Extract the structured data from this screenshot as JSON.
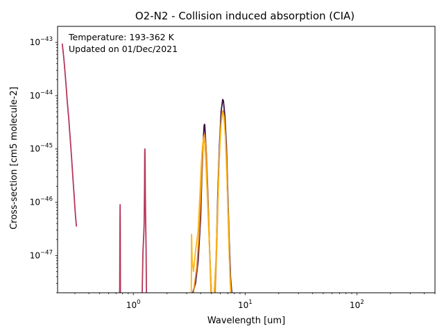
{
  "chart_data": {
    "type": "line",
    "title": "O2-N2 - Collision induced absorption (CIA)",
    "xlabel": "Wavelength [um]",
    "ylabel": "Cross-section [cm5 molecule-2]",
    "xscale": "log",
    "yscale": "log",
    "xlim": [
      0.21,
      500
    ],
    "ylim": [
      2e-48,
      2e-43
    ],
    "grid": false,
    "legend": "none",
    "annotation": [
      "Temperature: 193-362 K",
      "Updated on 01/Dec/2021"
    ],
    "xticks": [
      {
        "value": 1,
        "base": "10",
        "exp": "0"
      },
      {
        "value": 10,
        "base": "10",
        "exp": "1"
      },
      {
        "value": 100,
        "base": "10",
        "exp": "2"
      }
    ],
    "yticks": [
      {
        "value": 1e-43,
        "base": "10",
        "exp": "−43"
      },
      {
        "value": 1e-44,
        "base": "10",
        "exp": "−44"
      },
      {
        "value": 1e-45,
        "base": "10",
        "exp": "−45"
      },
      {
        "value": 1e-46,
        "base": "10",
        "exp": "−46"
      },
      {
        "value": 1e-47,
        "base": "10",
        "exp": "−47"
      }
    ],
    "series": [
      {
        "color": "#b5365a",
        "segments": [
          [
            [
              0.231,
              9.5e-44
            ],
            [
              0.235,
              7e-44
            ],
            [
              0.24,
              4.5e-44
            ],
            [
              0.245,
              2.7e-44
            ],
            [
              0.25,
              1.6e-44
            ],
            [
              0.255,
              9e-45
            ],
            [
              0.26,
              5.5e-45
            ],
            [
              0.265,
              3.5e-45
            ],
            [
              0.27,
              2e-45
            ],
            [
              0.275,
              1.2e-45
            ],
            [
              0.28,
              7e-46
            ],
            [
              0.285,
              4e-46
            ],
            [
              0.29,
              2.3e-46
            ],
            [
              0.295,
              1.4e-46
            ],
            [
              0.3,
              8e-47
            ],
            [
              0.305,
              5e-47
            ],
            [
              0.31,
              3.5e-47
            ]
          ],
          [
            [
              0.755,
              2e-48
            ],
            [
              0.758,
              2e-47
            ],
            [
              0.761,
              8e-47
            ],
            [
              0.762,
              9e-47
            ],
            [
              0.764,
              3e-47
            ],
            [
              0.766,
              2e-48
            ]
          ],
          [
            [
              1.2,
              2e-48
            ],
            [
              1.22,
              1.2e-47
            ],
            [
              1.24,
              2.5e-47
            ],
            [
              1.25,
              4e-47
            ],
            [
              1.26,
              2e-46
            ],
            [
              1.265,
              9e-46
            ],
            [
              1.27,
              1e-45
            ],
            [
              1.275,
              5e-46
            ],
            [
              1.28,
              1.5e-46
            ],
            [
              1.29,
              4e-47
            ],
            [
              1.3,
              1.5e-47
            ],
            [
              1.31,
              2e-48
            ]
          ]
        ]
      },
      {
        "color": "#3b0f45",
        "segments": [
          [
            [
              3.4,
              2e-48
            ],
            [
              3.6,
              3e-48
            ],
            [
              3.8,
              8e-48
            ],
            [
              4.0,
              5e-47
            ],
            [
              4.1,
              3e-46
            ],
            [
              4.2,
              1.2e-45
            ],
            [
              4.3,
              2.8e-45
            ],
            [
              4.35,
              2.9e-45
            ],
            [
              4.4,
              2e-45
            ],
            [
              4.5,
              8e-46
            ],
            [
              4.6,
              2.5e-46
            ],
            [
              4.7,
              6e-47
            ],
            [
              4.8,
              1.5e-47
            ],
            [
              4.9,
              5e-48
            ],
            [
              5.0,
              2e-48
            ]
          ],
          [
            [
              5.3,
              2e-48
            ],
            [
              5.5,
              8e-48
            ],
            [
              5.7,
              1.5e-46
            ],
            [
              5.9,
              1.2e-45
            ],
            [
              6.1,
              5e-45
            ],
            [
              6.3,
              8.5e-45
            ],
            [
              6.4,
              8e-45
            ],
            [
              6.6,
              4e-45
            ],
            [
              6.8,
              1.2e-45
            ],
            [
              7.0,
              1.5e-46
            ],
            [
              7.2,
              2e-47
            ],
            [
              7.4,
              4e-48
            ],
            [
              7.6,
              2e-48
            ]
          ]
        ]
      },
      {
        "color": "#e8831b",
        "segments": [
          [
            [
              3.45,
              2e-48
            ],
            [
              3.7,
              6e-48
            ],
            [
              3.9,
              3e-47
            ],
            [
              4.05,
              2e-46
            ],
            [
              4.15,
              8e-46
            ],
            [
              4.25,
              1.7e-45
            ],
            [
              4.35,
              1.9e-45
            ],
            [
              4.45,
              1.2e-45
            ],
            [
              4.55,
              4e-46
            ],
            [
              4.65,
              1e-46
            ],
            [
              4.8,
              1.5e-47
            ],
            [
              4.95,
              2e-48
            ]
          ],
          [
            [
              5.4,
              2e-48
            ],
            [
              5.6,
              2e-47
            ],
            [
              5.8,
              3e-46
            ],
            [
              6.0,
              2e-45
            ],
            [
              6.2,
              4.5e-45
            ],
            [
              6.35,
              5.2e-45
            ],
            [
              6.5,
              4e-45
            ],
            [
              6.7,
              1.5e-45
            ],
            [
              6.9,
              2.5e-46
            ],
            [
              7.1,
              3e-47
            ],
            [
              7.3,
              5e-48
            ],
            [
              7.5,
              2e-48
            ]
          ]
        ]
      },
      {
        "color": "#fbb618",
        "segments": [
          [
            [
              3.3,
              2e-48
            ],
            [
              3.32,
              2.5e-47
            ],
            [
              3.36,
              8e-48
            ],
            [
              3.45,
              5e-48
            ],
            [
              3.6,
              1.2e-47
            ],
            [
              3.8,
              3e-47
            ],
            [
              3.95,
              1.5e-46
            ],
            [
              4.05,
              5e-46
            ],
            [
              4.15,
              1.1e-45
            ],
            [
              4.25,
              1.6e-45
            ],
            [
              4.35,
              1.3e-45
            ],
            [
              4.45,
              6e-46
            ],
            [
              4.55,
              2e-46
            ],
            [
              4.7,
              4e-47
            ],
            [
              4.85,
              8e-48
            ],
            [
              5.0,
              2e-48
            ]
          ],
          [
            [
              5.3,
              2e-48
            ],
            [
              5.5,
              1e-47
            ],
            [
              5.7,
              1e-46
            ],
            [
              5.9,
              8e-46
            ],
            [
              6.1,
              3e-45
            ],
            [
              6.3,
              4.8e-45
            ],
            [
              6.45,
              4.2e-45
            ],
            [
              6.65,
              1.8e-45
            ],
            [
              6.85,
              4e-46
            ],
            [
              7.05,
              6e-47
            ],
            [
              7.2,
              1.2e-47
            ],
            [
              7.35,
              3e-48
            ],
            [
              7.45,
              2e-48
            ]
          ]
        ]
      }
    ]
  }
}
